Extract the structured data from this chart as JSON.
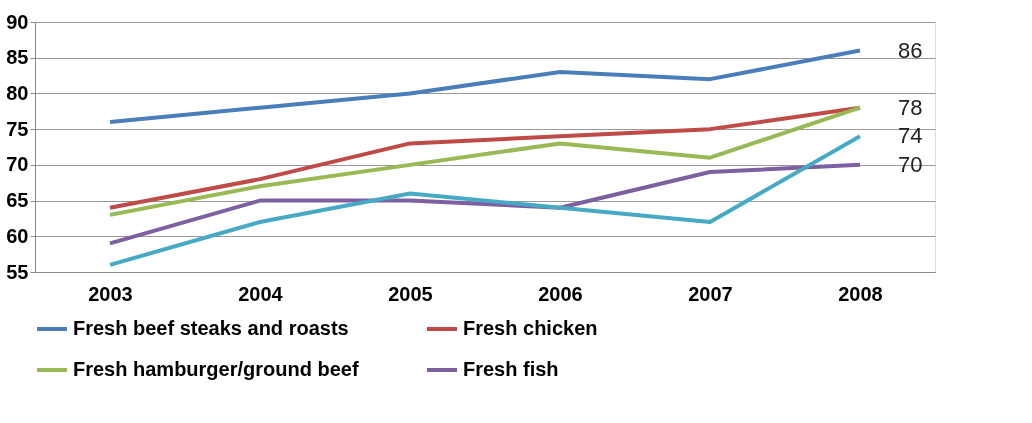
{
  "chart_data": {
    "type": "line",
    "categories": [
      "2003",
      "2004",
      "2005",
      "2006",
      "2007",
      "2008"
    ],
    "ylim": [
      55,
      90
    ],
    "yticks": [
      55,
      60,
      65,
      70,
      75,
      80,
      85,
      90
    ],
    "grid": "y",
    "legend": "bottom",
    "series": [
      {
        "name": "Fresh beef steaks and roasts",
        "color": "#4a7ebb",
        "values": [
          76,
          78,
          80,
          83,
          82,
          86
        ]
      },
      {
        "name": "Fresh chicken",
        "color": "#be4b48",
        "values": [
          64,
          68,
          73,
          74,
          75,
          78
        ]
      },
      {
        "name": "Fresh hamburger/ground beef",
        "color": "#98b954",
        "values": [
          63,
          67,
          70,
          73,
          71,
          78
        ]
      },
      {
        "name": "Fresh fish",
        "color": "#7d60a0",
        "values": [
          59,
          65,
          65,
          64,
          69,
          70
        ]
      },
      {
        "color": "#46aac5",
        "values": [
          56,
          62,
          66,
          64,
          62,
          74
        ]
      }
    ],
    "annotations": [
      {
        "text": "86",
        "x": "2008",
        "y": 86
      },
      {
        "text": "78",
        "x": "2008",
        "y": 78
      },
      {
        "text": "74",
        "x": "2008",
        "y": 74
      },
      {
        "text": "70",
        "x": "2008",
        "y": 70
      }
    ]
  }
}
